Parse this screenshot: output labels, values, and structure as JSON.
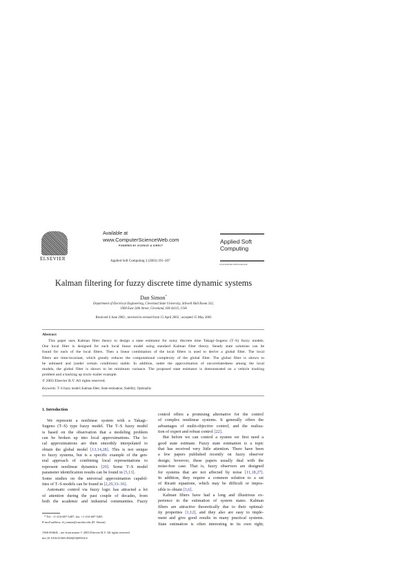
{
  "header": {
    "publisher_logo_text": "ELSEVIER",
    "available_at": "Available at",
    "site": "www.ComputerScienceWeb.com",
    "powered_by": "POWERED BY SCIENCE @ DIRECT",
    "journal_ref": "Applied Soft Computing 3 (2003) 191–207",
    "journal_name_line1": "Applied Soft",
    "journal_name_line2": "Computing",
    "journal_url": "www.elsevier.com/locate/asoc"
  },
  "article": {
    "title": "Kalman filtering for fuzzy discrete time dynamic systems",
    "author": "Dan Simon",
    "author_mark": "*",
    "affiliation_line1": "Department of Electrical Engineering, Cleveland State University, Stilwell Hall Room 332,",
    "affiliation_line2": "1960 East 24th Street, Cleveland, OH 44115, USA",
    "received": "Received 6 June 2002 ; received in revised form 15 April 2003 ; accepted 15 May 2003"
  },
  "abstract": {
    "heading": "Abstract",
    "lines": [
      "This paper uses Kalman filter theory to design a state estimator for noisy discrete time Takagi–Sugeno (T–S) fuzzy models.",
      "One local filter is designed for each local linear model using standard Kalman filter theory. Steady state solutions can be",
      "found for each of the local filters. Then a linear combination of the local filters is used to derive a global filter. The local",
      "filters are time-invariant, which greatly reduces the computational complexity of the global filter. The global filter is shown to",
      "be unbiased and (under certain conditions) stable. In addition, under the approximation of uncorrelatedness among the local",
      "models, the global filter is shown to be minimum variance. The proposed state estimator is demonstrated on a vehicle tracking",
      "problem and a backing up truck–trailer example."
    ],
    "copyright": "© 2003 Elsevier B.V. All rights reserved.",
    "keywords_label": "Keywords:",
    "keywords": "T–S fuzzy model; Kalman filter; State estimation; Stability; Optimality"
  },
  "intro": {
    "heading": "1. Introduction",
    "left_lines": [
      [
        {
          "t": "We represent a nonlinear system with a Takagi–"
        }
      ],
      [
        {
          "t": "Sugeno (T–S) type fuzzy model. The T–S fuzzy model"
        }
      ],
      [
        {
          "t": "is based on the observation that a modeling problem"
        }
      ],
      [
        {
          "t": "can be broken up into local approximations. The lo-"
        }
      ],
      [
        {
          "t": "cal approximations are then smoothly interpolated to"
        }
      ],
      [
        {
          "t": "obtain the global model "
        },
        {
          "t": "[13,14,28]",
          "c": 1
        },
        {
          "t": ". This is not unique"
        }
      ],
      [
        {
          "t": "to fuzzy systems, but is a specific example of the gen-"
        }
      ],
      [
        {
          "t": "eral approach of combining local representations to"
        }
      ],
      [
        {
          "t": "represent nonlinear dynamics "
        },
        {
          "t": "[20]",
          "c": 1
        },
        {
          "t": ". Some T–S model"
        }
      ],
      [
        {
          "t": "parameter identification results can be found in "
        },
        {
          "t": "[5,13]",
          "c": 1
        },
        {
          "t": "."
        }
      ],
      [
        {
          "t": "Some studies on the universal approximation capabil-"
        }
      ],
      [
        {
          "t": "ities of T–S models can be found in "
        },
        {
          "t": "[2,29,33–36]",
          "c": 1
        },
        {
          "t": "."
        }
      ],
      [
        {
          "t": "Automatic control via fuzzy logic has attracted a lot"
        }
      ],
      [
        {
          "t": "of attention during the past couple of decades, from"
        }
      ],
      [
        {
          "t": "both the academic and industrial communities. Fuzzy"
        }
      ]
    ],
    "right_lines": [
      [
        {
          "t": "control offers a promising alternative for the control"
        }
      ],
      [
        {
          "t": "of complex nonlinear systems. It generally offers the"
        }
      ],
      [
        {
          "t": "advantages of multi-objective control, and the realiza-"
        }
      ],
      [
        {
          "t": "tion of expert and robust control "
        },
        {
          "t": "[22]",
          "c": 1
        },
        {
          "t": "."
        }
      ],
      [
        {
          "t": "But before we can control a system we first need a"
        }
      ],
      [
        {
          "t": "good state estimate. Fuzzy state estimation is a topic"
        }
      ],
      [
        {
          "t": "that has received very little attention. There have been"
        }
      ],
      [
        {
          "t": "a few papers published recently on fuzzy observer"
        }
      ],
      [
        {
          "t": "design; however, these papers usually deal with the"
        }
      ],
      [
        {
          "t": "noise-free case. That is, fuzzy observers are designed"
        }
      ],
      [
        {
          "t": "for systems that are not affected by noise "
        },
        {
          "t": "[11,18,27]",
          "c": 1
        },
        {
          "t": "."
        }
      ],
      [
        {
          "t": "In addition, they require a common solution to a set"
        }
      ],
      [
        {
          "t": "of Ricatti equations, which may be difficult or impos-"
        }
      ],
      [
        {
          "t": "sible to obtain "
        },
        {
          "t": "[3,6]",
          "c": 1
        },
        {
          "t": "."
        }
      ],
      [
        {
          "t": "Kalman filters have had a long and illustrious ex-"
        }
      ],
      [
        {
          "t": "perience in the estimation of system states. Kalman"
        }
      ],
      [
        {
          "t": "filters are attractive theoretically due to their optimal-"
        }
      ],
      [
        {
          "t": "ity properties "
        },
        {
          "t": "[1,12]",
          "c": 1
        },
        {
          "t": ", and they also are easy to imple-"
        }
      ],
      [
        {
          "t": "ment and give good results in many practical systems."
        }
      ],
      [
        {
          "t": "State estimation is often interesting in its own right;"
        }
      ]
    ]
  },
  "footnote": {
    "line1": "* Tel.: +1-216-687-5407; fax: +1-216-687-5405.",
    "email_label": "E-mail address:",
    "email": "d.j.simon@csuohio.edu (D. Simon)."
  },
  "bottom": {
    "issn": "1568-4946/$ – see front matter © 2003 Elsevier B.V. All rights reserved.",
    "doi": "doi:10.1016/S1568-4946(03)00034-6"
  },
  "colors": {
    "citation": "#2b3fa8",
    "text": "#222222"
  }
}
